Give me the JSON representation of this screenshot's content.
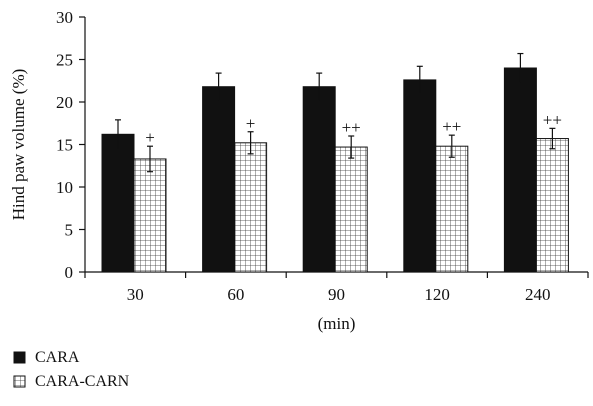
{
  "chart_data": {
    "type": "bar",
    "categories": [
      "30",
      "60",
      "90",
      "120",
      "240"
    ],
    "series": [
      {
        "name": "CARA",
        "values": [
          16.2,
          21.8,
          21.8,
          22.6,
          24.0
        ],
        "errors": [
          1.7,
          1.6,
          1.6,
          1.6,
          1.7
        ],
        "color": "#111111",
        "pattern": "solid"
      },
      {
        "name": "CARA-CARN",
        "values": [
          13.3,
          15.2,
          14.7,
          14.8,
          15.7
        ],
        "errors": [
          1.5,
          1.3,
          1.3,
          1.3,
          1.2
        ],
        "color": "#ffffff",
        "pattern": "grid"
      }
    ],
    "annotations": [
      {
        "category": "30",
        "series": "CARA-CARN",
        "text": "+"
      },
      {
        "category": "60",
        "series": "CARA-CARN",
        "text": "+"
      },
      {
        "category": "90",
        "series": "CARA-CARN",
        "text": "++"
      },
      {
        "category": "120",
        "series": "CARA-CARN",
        "text": "++"
      },
      {
        "category": "240",
        "series": "CARA-CARN",
        "text": "++"
      }
    ],
    "title": "",
    "xlabel": "(min)",
    "ylabel": "Hind paw volume (%)",
    "ylim": [
      0,
      30
    ],
    "yticks": [
      0,
      5,
      10,
      15,
      20,
      25,
      30
    ],
    "grid": false,
    "legend_placement": "bottom-left"
  }
}
